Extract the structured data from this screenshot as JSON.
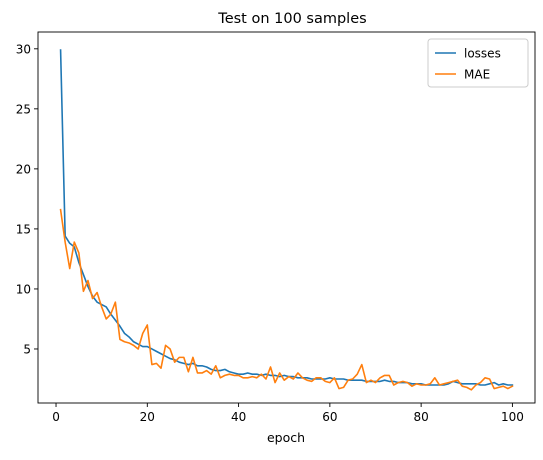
{
  "chart_data": {
    "type": "line",
    "title": "Test on 100 samples",
    "xlabel": "epoch",
    "ylabel": "",
    "xlim": [
      -3.95,
      104.95
    ],
    "ylim": [
      0.5,
      31.4
    ],
    "xticks": [
      0,
      20,
      40,
      60,
      80,
      100
    ],
    "yticks": [
      5,
      10,
      15,
      20,
      25,
      30
    ],
    "grid": false,
    "legend_position": "top-right",
    "x": [
      1,
      2,
      3,
      4,
      5,
      6,
      7,
      8,
      9,
      10,
      11,
      12,
      13,
      14,
      15,
      16,
      17,
      18,
      19,
      20,
      21,
      22,
      23,
      24,
      25,
      26,
      27,
      28,
      29,
      30,
      31,
      32,
      33,
      34,
      35,
      36,
      37,
      38,
      39,
      40,
      41,
      42,
      43,
      44,
      45,
      46,
      47,
      48,
      49,
      50,
      51,
      52,
      53,
      54,
      55,
      56,
      57,
      58,
      59,
      60,
      61,
      62,
      63,
      64,
      65,
      66,
      67,
      68,
      69,
      70,
      71,
      72,
      73,
      74,
      75,
      76,
      77,
      78,
      79,
      80,
      81,
      82,
      83,
      84,
      85,
      86,
      87,
      88,
      89,
      90,
      91,
      92,
      93,
      94,
      95,
      96,
      97,
      98,
      99,
      100
    ],
    "series": [
      {
        "name": "losses",
        "color": "#1f77b4",
        "values": [
          29.9,
          14.4,
          13.8,
          13.5,
          12.2,
          11.2,
          10.2,
          9.4,
          8.9,
          8.7,
          8.5,
          7.9,
          7.4,
          6.9,
          6.3,
          6.0,
          5.6,
          5.4,
          5.2,
          5.2,
          5.0,
          4.8,
          4.6,
          4.4,
          4.2,
          4.1,
          3.9,
          3.8,
          3.7,
          3.8,
          3.6,
          3.6,
          3.5,
          3.3,
          3.2,
          3.2,
          3.3,
          3.1,
          3.0,
          2.9,
          2.9,
          3.0,
          2.9,
          2.9,
          2.8,
          2.9,
          2.8,
          2.8,
          2.7,
          2.8,
          2.7,
          2.7,
          2.6,
          2.6,
          2.6,
          2.5,
          2.5,
          2.5,
          2.5,
          2.6,
          2.5,
          2.5,
          2.5,
          2.4,
          2.4,
          2.4,
          2.4,
          2.3,
          2.3,
          2.3,
          2.3,
          2.4,
          2.3,
          2.3,
          2.2,
          2.2,
          2.2,
          2.1,
          2.1,
          2.1,
          2.0,
          2.0,
          2.0,
          2.0,
          2.0,
          2.1,
          2.3,
          2.2,
          2.1,
          2.1,
          2.1,
          2.1,
          2.0,
          2.0,
          2.1,
          2.2,
          2.0,
          2.1,
          2.0,
          2.0
        ]
      },
      {
        "name": "MAE",
        "color": "#ff7f0e",
        "values": [
          16.6,
          13.9,
          11.7,
          13.9,
          13.0,
          9.8,
          10.7,
          9.2,
          9.7,
          8.5,
          7.5,
          7.9,
          8.9,
          5.8,
          5.6,
          5.5,
          5.3,
          5.0,
          6.3,
          7.0,
          3.7,
          3.8,
          3.4,
          5.3,
          5.0,
          3.9,
          4.3,
          4.3,
          3.1,
          4.3,
          3.0,
          3.0,
          3.2,
          2.9,
          3.6,
          2.6,
          2.8,
          2.9,
          2.8,
          2.8,
          2.6,
          2.6,
          2.7,
          2.6,
          2.9,
          2.5,
          3.5,
          2.2,
          3.0,
          2.4,
          2.7,
          2.5,
          3.0,
          2.6,
          2.4,
          2.3,
          2.6,
          2.6,
          2.3,
          2.2,
          2.6,
          1.7,
          1.8,
          2.4,
          2.5,
          2.9,
          3.7,
          2.2,
          2.4,
          2.2,
          2.6,
          2.8,
          2.8,
          2.0,
          2.2,
          2.3,
          2.2,
          1.9,
          2.1,
          2.0,
          2.0,
          2.1,
          2.6,
          2.0,
          2.1,
          2.2,
          2.3,
          2.4,
          1.9,
          1.8,
          1.6,
          2.0,
          2.2,
          2.6,
          2.5,
          1.7,
          1.8,
          1.9,
          1.7,
          1.9
        ]
      }
    ]
  }
}
